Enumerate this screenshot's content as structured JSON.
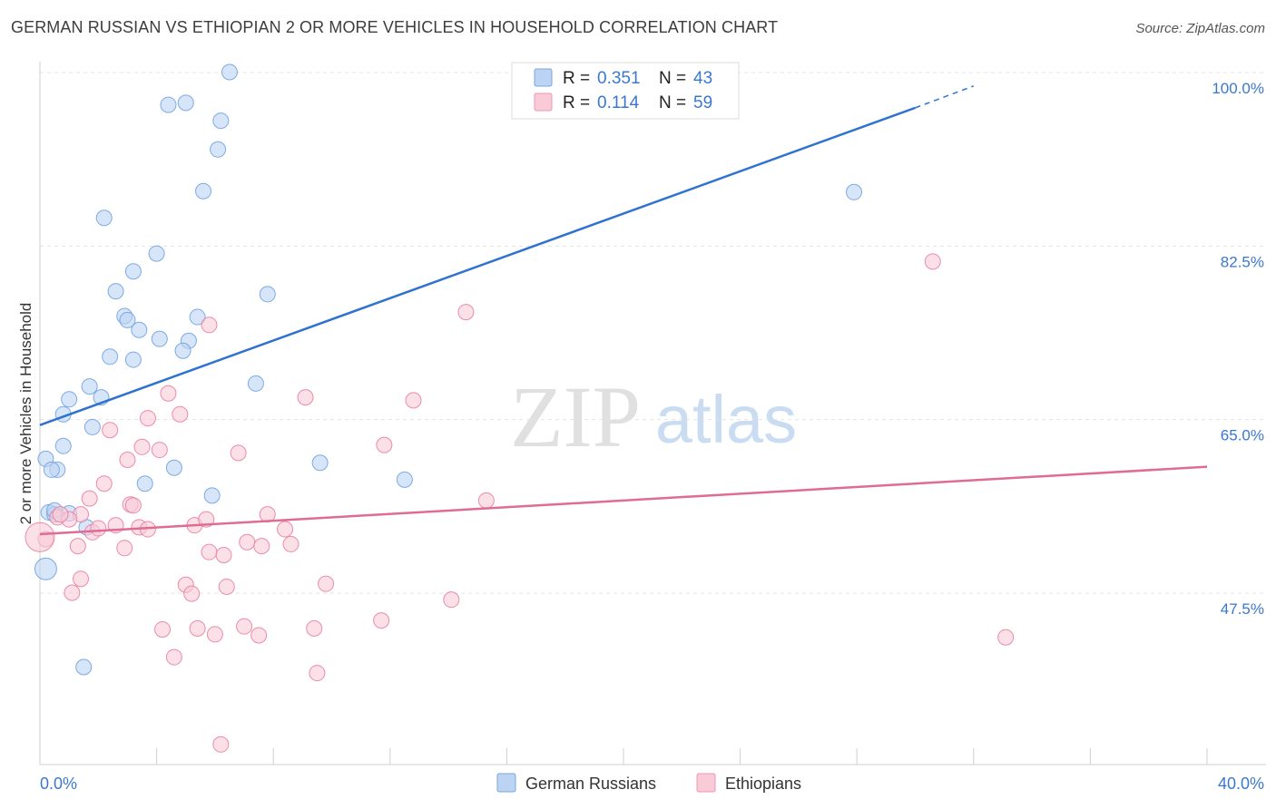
{
  "header": {
    "title": "GERMAN RUSSIAN VS ETHIOPIAN 2 OR MORE VEHICLES IN HOUSEHOLD CORRELATION CHART",
    "source": "Source: ZipAtlas.com"
  },
  "watermark": {
    "zip": "ZIP",
    "atlas": "atlas"
  },
  "stats_legend": [
    {
      "r_label": "R =",
      "r_value": "0.351",
      "n_label": "N =",
      "n_value": "43",
      "color": "#a9c8ef"
    },
    {
      "r_label": "R =",
      "r_value": "0.114",
      "n_label": "N =",
      "n_value": "59",
      "color": "#f6b9cc"
    }
  ],
  "chart_data": {
    "type": "scatter",
    "title": "GERMAN RUSSIAN VS ETHIOPIAN 2 OR MORE VEHICLES IN HOUSEHOLD CORRELATION CHART",
    "xlabel": "",
    "ylabel": "2 or more Vehicles in Household",
    "xlim": [
      0,
      40
    ],
    "ylim": [
      32,
      102
    ],
    "x_tick_labels": [
      "0.0%",
      "40.0%"
    ],
    "y_ticks": [
      47.5,
      65.0,
      82.5,
      100.0
    ],
    "y_tick_labels": [
      "47.5%",
      "65.0%",
      "82.5%",
      "100.0%"
    ],
    "grid": true,
    "legend_position": "bottom",
    "series": [
      {
        "name": "German Russians",
        "color": "#6a9ee0",
        "fill": "#bcd4f4",
        "trend": {
          "x0": 0,
          "y0": 66.0,
          "x1": 30.0,
          "y1": 98.0,
          "dash_to_x": 32.0,
          "dash_to_y": 100.2
        },
        "points": [
          [
            6.5,
            101.6
          ],
          [
            4.4,
            98.3
          ],
          [
            5.0,
            98.5
          ],
          [
            6.2,
            96.7
          ],
          [
            6.1,
            93.8
          ],
          [
            5.6,
            89.6
          ],
          [
            2.2,
            86.9
          ],
          [
            4.0,
            83.3
          ],
          [
            3.2,
            81.5
          ],
          [
            2.6,
            79.5
          ],
          [
            7.8,
            79.2
          ],
          [
            2.9,
            77.0
          ],
          [
            3.0,
            76.6
          ],
          [
            3.4,
            75.6
          ],
          [
            5.4,
            76.9
          ],
          [
            4.1,
            74.7
          ],
          [
            5.1,
            74.5
          ],
          [
            4.9,
            73.5
          ],
          [
            2.4,
            72.9
          ],
          [
            3.2,
            72.6
          ],
          [
            7.4,
            70.2
          ],
          [
            1.7,
            69.9
          ],
          [
            1.0,
            68.6
          ],
          [
            2.1,
            68.8
          ],
          [
            0.8,
            67.1
          ],
          [
            1.8,
            65.8
          ],
          [
            0.8,
            63.9
          ],
          [
            0.2,
            62.6
          ],
          [
            0.6,
            61.5
          ],
          [
            0.4,
            61.5
          ],
          [
            4.6,
            61.7
          ],
          [
            3.6,
            60.1
          ],
          [
            5.9,
            58.9
          ],
          [
            0.3,
            57.2
          ],
          [
            1.6,
            55.7
          ],
          [
            0.2,
            51.5
          ],
          [
            1.5,
            41.6
          ],
          [
            27.9,
            89.5
          ],
          [
            9.6,
            62.2
          ],
          [
            12.5,
            60.5
          ],
          [
            0.5,
            57.0
          ],
          [
            0.5,
            57.4
          ],
          [
            1.0,
            57.1
          ]
        ]
      },
      {
        "name": "Ethiopians",
        "color": "#e7799e",
        "fill": "#f9cbd9",
        "trend": {
          "x0": 0,
          "y0": 55.0,
          "x1": 40.0,
          "y1": 61.8
        },
        "points": [
          [
            30.6,
            82.5
          ],
          [
            14.6,
            77.4
          ],
          [
            5.8,
            76.1
          ],
          [
            4.4,
            69.2
          ],
          [
            9.1,
            68.8
          ],
          [
            12.8,
            68.5
          ],
          [
            4.8,
            67.1
          ],
          [
            3.7,
            66.7
          ],
          [
            2.4,
            65.5
          ],
          [
            11.8,
            64.0
          ],
          [
            3.5,
            63.8
          ],
          [
            4.1,
            63.5
          ],
          [
            6.8,
            63.2
          ],
          [
            3.0,
            62.5
          ],
          [
            1.7,
            58.6
          ],
          [
            2.2,
            60.1
          ],
          [
            3.1,
            58.0
          ],
          [
            15.3,
            58.4
          ],
          [
            7.8,
            57.0
          ],
          [
            0.6,
            56.7
          ],
          [
            1.4,
            57.0
          ],
          [
            2.6,
            55.9
          ],
          [
            3.4,
            55.7
          ],
          [
            3.7,
            55.5
          ],
          [
            5.3,
            55.9
          ],
          [
            5.7,
            56.5
          ],
          [
            8.4,
            55.5
          ],
          [
            1.0,
            56.5
          ],
          [
            1.8,
            55.2
          ],
          [
            2.9,
            53.6
          ],
          [
            5.8,
            53.2
          ],
          [
            7.1,
            54.2
          ],
          [
            7.6,
            53.8
          ],
          [
            8.6,
            54.0
          ],
          [
            1.3,
            53.8
          ],
          [
            0.2,
            54.5
          ],
          [
            0.7,
            57.0
          ],
          [
            1.4,
            50.5
          ],
          [
            1.1,
            49.1
          ],
          [
            5.0,
            49.9
          ],
          [
            5.2,
            49.0
          ],
          [
            6.4,
            49.7
          ],
          [
            9.8,
            50.0
          ],
          [
            4.2,
            45.4
          ],
          [
            5.4,
            45.5
          ],
          [
            6.0,
            44.9
          ],
          [
            7.0,
            45.7
          ],
          [
            7.5,
            44.8
          ],
          [
            9.4,
            45.5
          ],
          [
            11.7,
            46.3
          ],
          [
            14.1,
            48.4
          ],
          [
            33.1,
            44.6
          ],
          [
            4.6,
            42.6
          ],
          [
            9.5,
            41.0
          ],
          [
            6.2,
            33.8
          ],
          [
            0.0,
            54.7
          ],
          [
            2.0,
            55.6
          ],
          [
            3.2,
            57.9
          ],
          [
            6.3,
            52.9
          ]
        ]
      }
    ]
  }
}
